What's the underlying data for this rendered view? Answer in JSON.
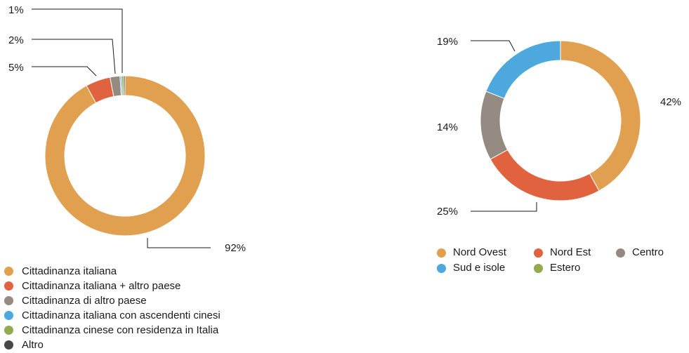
{
  "chart_data": [
    {
      "type": "pie",
      "donut": true,
      "slices": [
        {
          "name": "Cittadinanza italiana",
          "value": 92,
          "label": "92%",
          "color": "#E0A050"
        },
        {
          "name": "Cittadinanza italiana + altro paese",
          "value": 5,
          "label": "5%",
          "color": "#E0623F"
        },
        {
          "name": "Cittadinanza di altro paese",
          "value": 2,
          "label": "2%",
          "color": "#958A82"
        },
        {
          "name": "Cittadinanza italiana con ascendenti cinesi",
          "value": 0.3,
          "label": "",
          "color": "#4DA8DE"
        },
        {
          "name": "Cittadinanza cinese con residenza in Italia",
          "value": 0.4,
          "label": "1%",
          "color": "#94AA4E"
        },
        {
          "name": "Altro",
          "value": 0.3,
          "label": "",
          "color": "#474747"
        }
      ],
      "legend_position": "bottom-left"
    },
    {
      "type": "pie",
      "donut": true,
      "slices": [
        {
          "name": "Nord Ovest",
          "value": 42,
          "label": "42%",
          "color": "#E0A050"
        },
        {
          "name": "Nord Est",
          "value": 25,
          "label": "25%",
          "color": "#E0623F"
        },
        {
          "name": "Centro",
          "value": 14,
          "label": "14%",
          "color": "#958A82"
        },
        {
          "name": "Sud e isole",
          "value": 19,
          "label": "19%",
          "color": "#4DA8DE"
        },
        {
          "name": "Estero",
          "value": 0,
          "label": "",
          "color": "#94AA4E"
        }
      ],
      "legend_position": "bottom"
    }
  ]
}
